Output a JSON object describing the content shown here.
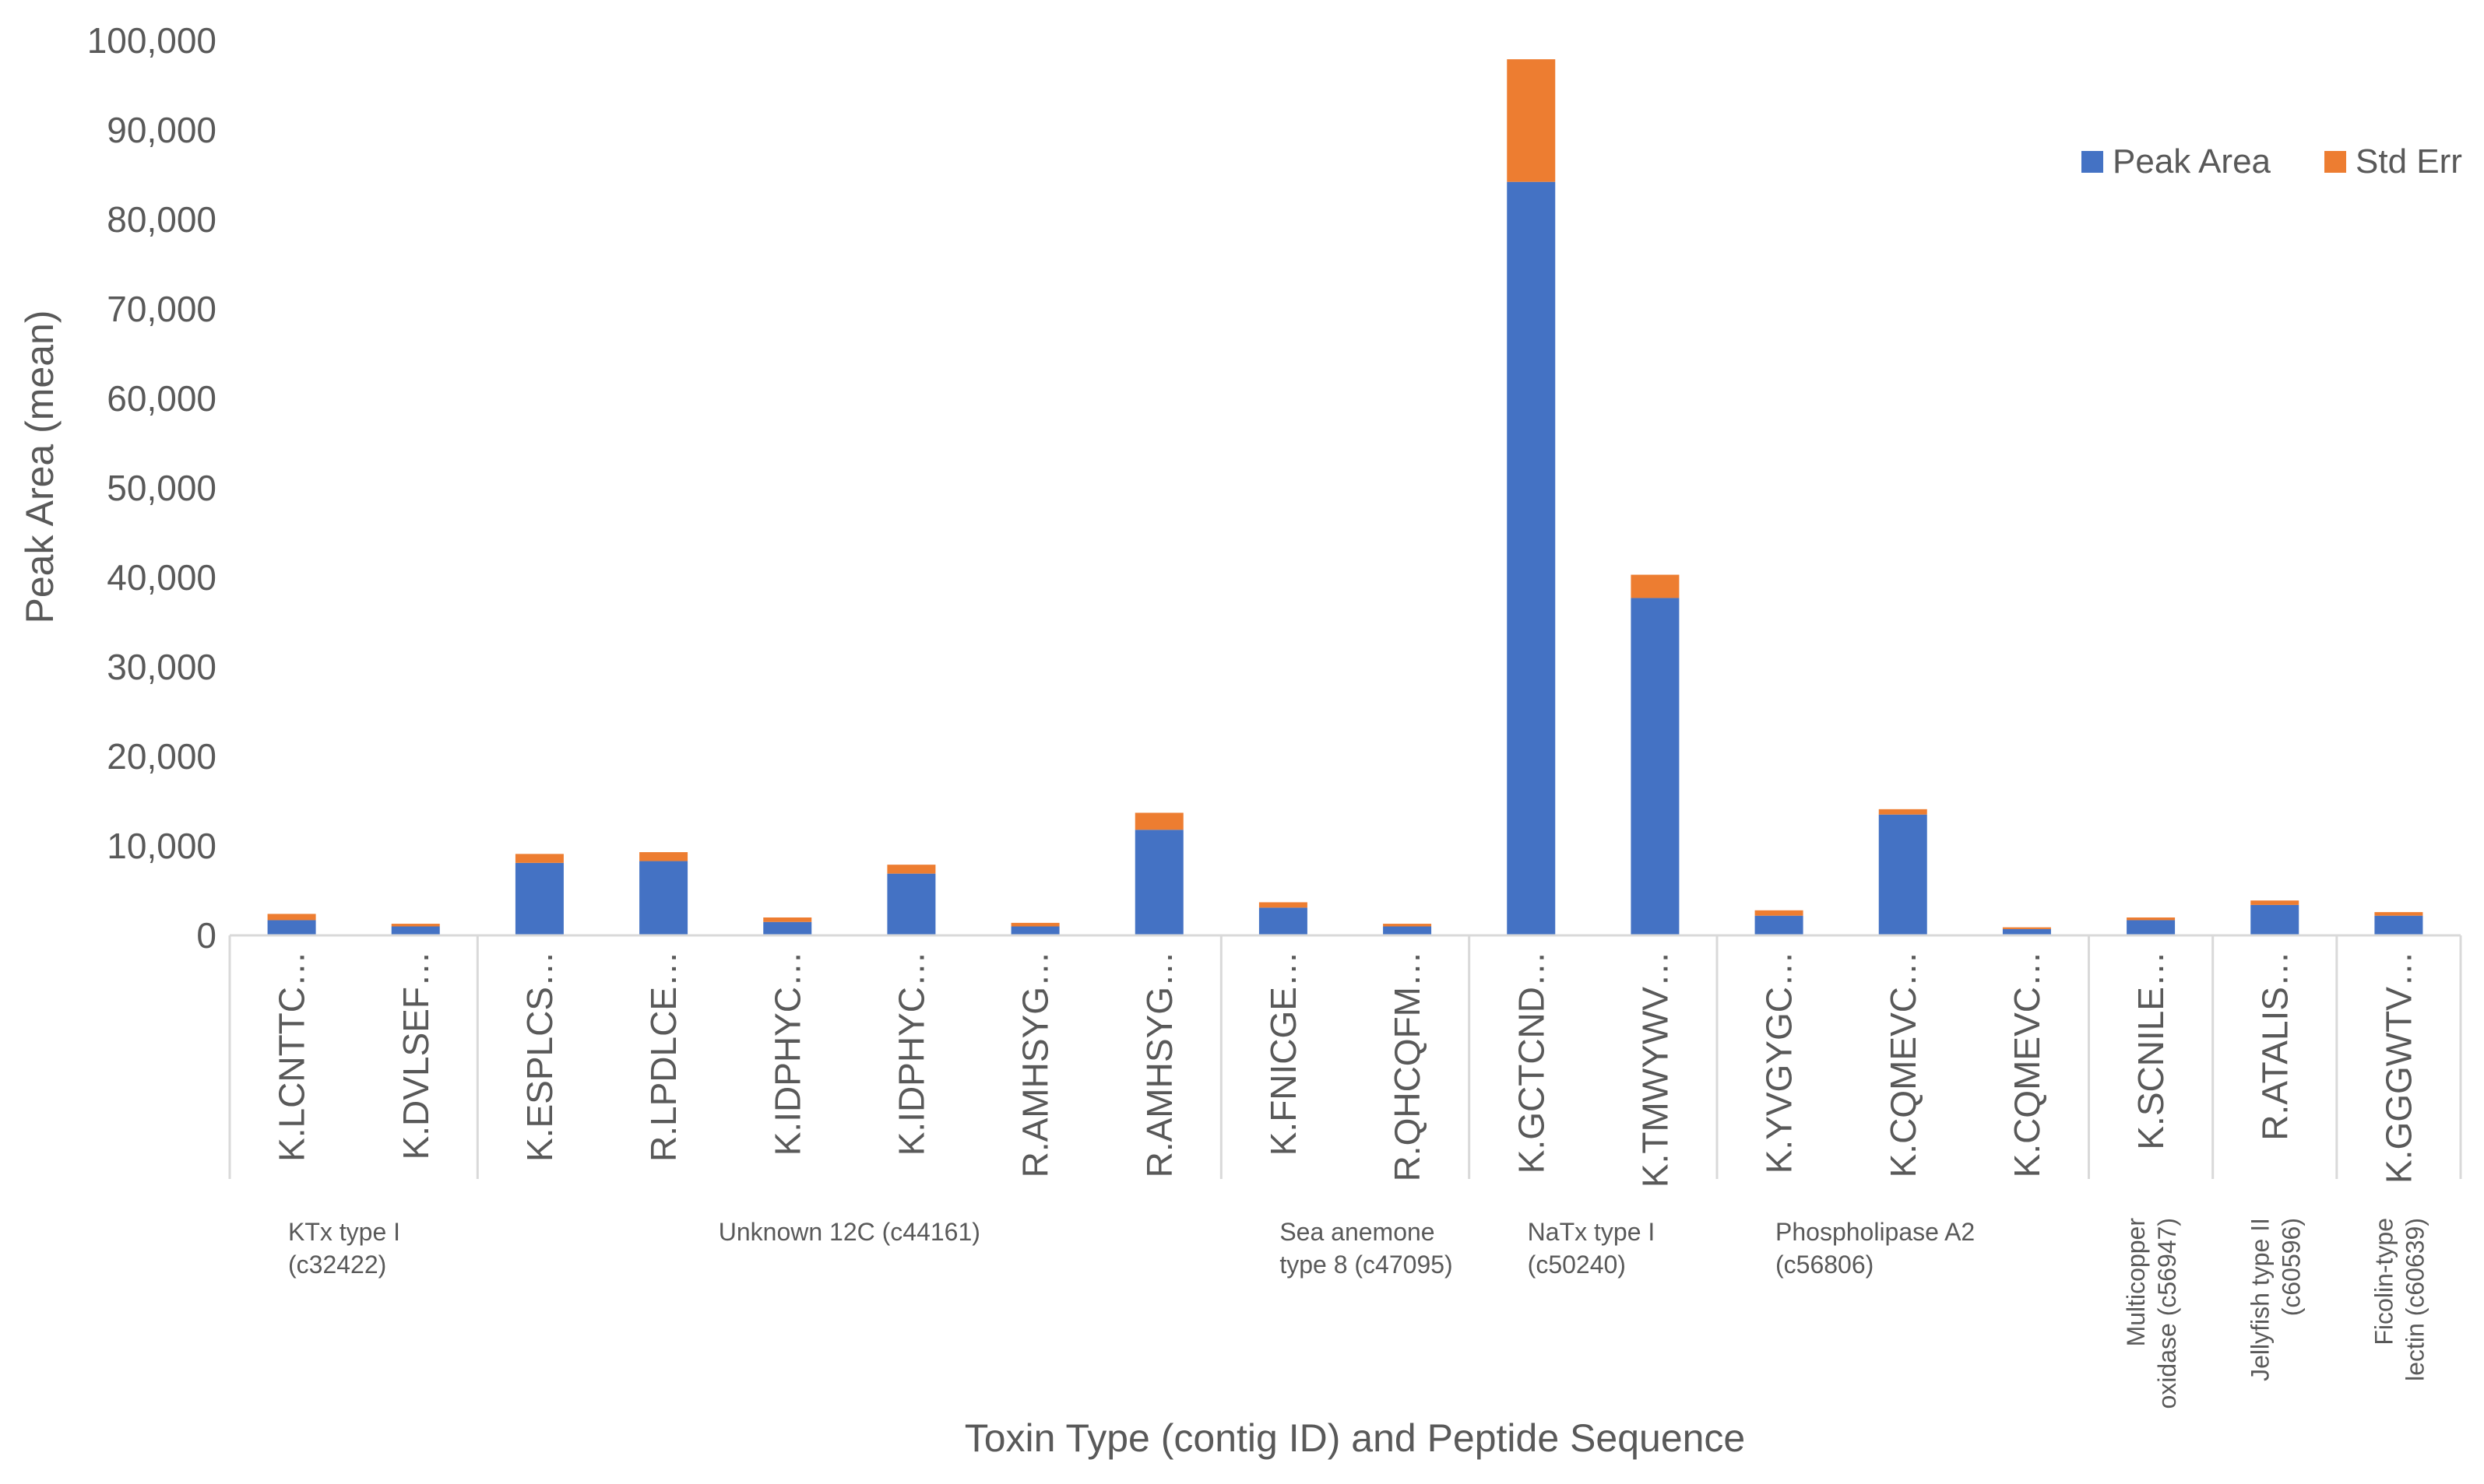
{
  "chart_data": {
    "type": "bar",
    "stacked": true,
    "title": "",
    "xlabel": "Toxin Type (contig ID) and Peptide Sequence",
    "ylabel": "Peak Area (mean)",
    "ylim": [
      0,
      100000
    ],
    "yticks": [
      "0",
      "10,000",
      "20,000",
      "30,000",
      "40,000",
      "50,000",
      "60,000",
      "70,000",
      "80,000",
      "90,000",
      "100,000"
    ],
    "grid": false,
    "legend_position": "top-right",
    "categories": [
      "K.LCNTTC…",
      "K.DVLSEF…",
      "K.ESPLCS…",
      "R.LPDLCE…",
      "K.IDPHYC…",
      "K.IDPHYC…",
      "R.AMHSYG…",
      "R.AMHSYG…",
      "K.FNICGE…",
      "R.QHCQFM…",
      "K.GCTCND…",
      "K.TMWYWV…",
      "K.YVGYGC…",
      "K.CQMEVC…",
      "K.CQMEVC…",
      "K.SCNILE…",
      "R.ATALIS…",
      "K.GGGWTV…"
    ],
    "series": [
      {
        "name": "Peak Area",
        "color": "#4472C4",
        "values": [
          1700,
          1000,
          8100,
          8300,
          1500,
          6900,
          1000,
          11800,
          3100,
          1000,
          84200,
          37700,
          2200,
          13500,
          700,
          1700,
          3400,
          2200
        ]
      },
      {
        "name": "Std Err",
        "color": "#ED7D31",
        "values": [
          700,
          300,
          1000,
          1000,
          500,
          1000,
          400,
          1900,
          600,
          300,
          13700,
          2600,
          600,
          600,
          200,
          300,
          500,
          400
        ]
      }
    ],
    "groups": [
      {
        "lines": [
          "KTx type I",
          "(c32422)"
        ],
        "start": 0,
        "end": 2,
        "rotated": false
      },
      {
        "lines": [
          "Unknown 12C (c44161)"
        ],
        "start": 2,
        "end": 8,
        "rotated": false
      },
      {
        "lines": [
          "Sea anemone",
          "type 8 (c47095)"
        ],
        "start": 8,
        "end": 10,
        "rotated": false
      },
      {
        "lines": [
          "NaTx type I",
          "(c50240)"
        ],
        "start": 10,
        "end": 12,
        "rotated": false
      },
      {
        "lines": [
          "Phospholipase A2",
          "(c56806)"
        ],
        "start": 12,
        "end": 15,
        "rotated": false
      },
      {
        "lines": [
          "Multicopper",
          "oxidase (c56947)"
        ],
        "start": 15,
        "end": 16,
        "rotated": true
      },
      {
        "lines": [
          "Jellyfish type II",
          "(c60596)"
        ],
        "start": 16,
        "end": 17,
        "rotated": true
      },
      {
        "lines": [
          "Ficolin-type",
          "lectin (c60639)"
        ],
        "start": 17,
        "end": 18,
        "rotated": true
      }
    ]
  }
}
